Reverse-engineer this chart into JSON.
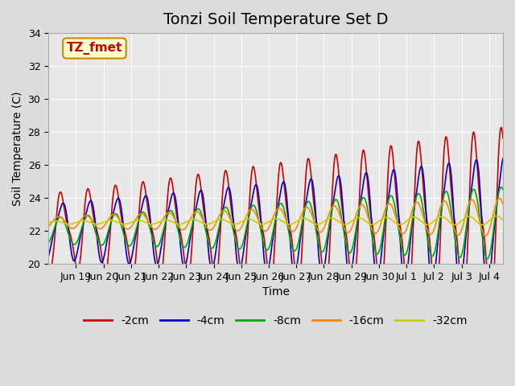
{
  "title": "Tonzi Soil Temperature Set D",
  "xlabel": "Time",
  "ylabel": "Soil Temperature (C)",
  "ylim": [
    20,
    34
  ],
  "series_colors": [
    "#cc0000",
    "#0000cc",
    "#00aa00",
    "#ff8800",
    "#cccc00"
  ],
  "series_labels": [
    "-2cm",
    "-4cm",
    "-8cm",
    "-16cm",
    "-32cm"
  ],
  "annotation_text": "TZ_fmet",
  "annotation_bg": "#ffffcc",
  "annotation_border": "#cc8800",
  "tick_labels": [
    "Jun 19",
    "Jun 20",
    "Jun 21",
    "Jun 22",
    "Jun 23",
    "Jun 24",
    "Jun 25",
    "Jun 26",
    "Jun 27",
    "Jun 28",
    "Jun 29",
    "Jun 30",
    "Jul 1",
    "Jul 2",
    "Jul 3",
    "Jul 4"
  ],
  "title_fontsize": 14,
  "label_fontsize": 10,
  "tick_fontsize": 9,
  "legend_fontsize": 10,
  "n_points": 792,
  "xlim": [
    0,
    16.5
  ]
}
